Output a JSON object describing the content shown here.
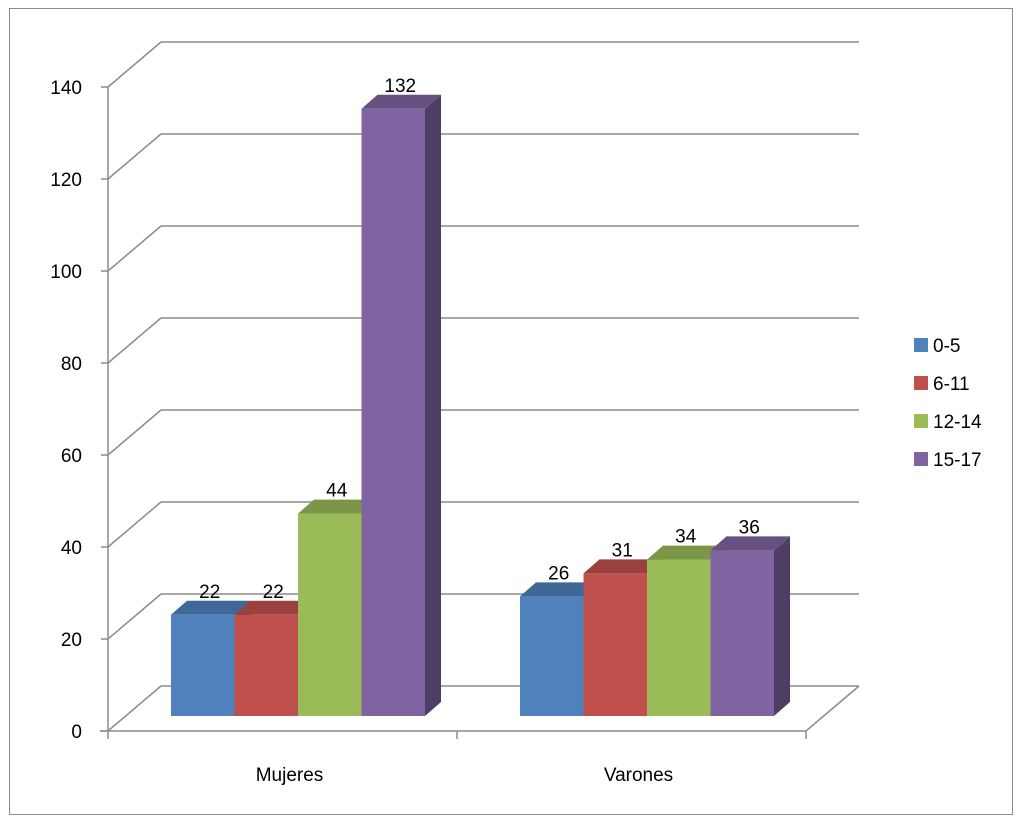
{
  "chart_data": {
    "type": "bar",
    "style": "3d-clustered-column",
    "categories": [
      "Mujeres",
      "Varones"
    ],
    "series": [
      {
        "name": "0-5",
        "values": [
          22,
          26
        ],
        "color": "#4f81bd"
      },
      {
        "name": "6-11",
        "values": [
          22,
          31
        ],
        "color": "#c0504d"
      },
      {
        "name": "12-14",
        "values": [
          44,
          34
        ],
        "color": "#9bbb59"
      },
      {
        "name": "15-17",
        "values": [
          132,
          36
        ],
        "color": "#8064a2"
      }
    ],
    "ylim": [
      0,
      140
    ],
    "yticks": [
      0,
      20,
      40,
      60,
      80,
      100,
      120,
      140
    ],
    "grid": true,
    "legend": "right",
    "data_labels": true
  }
}
